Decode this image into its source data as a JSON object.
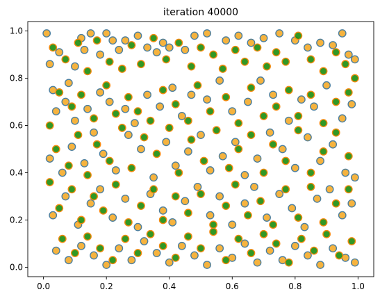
{
  "chart_data": {
    "type": "scatter",
    "title": "iteration 40000",
    "xlabel": "",
    "ylabel": "",
    "xlim": [
      -0.05,
      1.05
    ],
    "ylim": [
      -0.04,
      1.04
    ],
    "xticks": [
      "0.0",
      "0.2",
      "0.4",
      "0.6",
      "0.8",
      "1.0"
    ],
    "yticks": [
      "0.0",
      "0.2",
      "0.4",
      "0.6",
      "0.8",
      "1.0"
    ],
    "grid": false,
    "series": [
      {
        "marker_style": "orange-fill-steelblue-edge",
        "face_color": "#f5ac2e",
        "edge_color": "#4d7f9e",
        "points": [
          [
            0.01,
            0.99
          ],
          [
            0.02,
            0.86
          ],
          [
            0.03,
            0.75
          ],
          [
            0.05,
            0.91
          ],
          [
            0.08,
            0.78
          ],
          [
            0.1,
            0.85
          ],
          [
            0.12,
            0.97
          ],
          [
            0.13,
            0.92
          ],
          [
            0.15,
            0.99
          ],
          [
            0.18,
            0.9
          ],
          [
            0.2,
            0.99
          ],
          [
            0.22,
            0.96
          ],
          [
            0.24,
            0.92
          ],
          [
            0.26,
            0.96
          ],
          [
            0.3,
            0.98
          ],
          [
            0.33,
            0.93
          ],
          [
            0.36,
            0.91
          ],
          [
            0.38,
            0.95
          ],
          [
            0.4,
            0.93
          ],
          [
            0.45,
            0.92
          ],
          [
            0.48,
            0.98
          ],
          [
            0.52,
            0.99
          ],
          [
            0.58,
            0.96
          ],
          [
            0.62,
            0.98
          ],
          [
            0.66,
            0.95
          ],
          [
            0.7,
            0.97
          ],
          [
            0.75,
            0.99
          ],
          [
            0.8,
            0.96
          ],
          [
            0.84,
            0.93
          ],
          [
            0.88,
            0.95
          ],
          [
            0.92,
            0.94
          ],
          [
            0.95,
            0.99
          ],
          [
            0.97,
            0.9
          ],
          [
            0.99,
            0.88
          ],
          [
            0.04,
            0.66
          ],
          [
            0.07,
            0.7
          ],
          [
            0.1,
            0.62
          ],
          [
            0.14,
            0.67
          ],
          [
            0.18,
            0.74
          ],
          [
            0.21,
            0.7
          ],
          [
            0.26,
            0.67
          ],
          [
            0.29,
            0.61
          ],
          [
            0.33,
            0.73
          ],
          [
            0.37,
            0.68
          ],
          [
            0.41,
            0.76
          ],
          [
            0.44,
            0.64
          ],
          [
            0.47,
            0.73
          ],
          [
            0.52,
            0.71
          ],
          [
            0.56,
            0.79
          ],
          [
            0.6,
            0.66
          ],
          [
            0.65,
            0.7
          ],
          [
            0.69,
            0.79
          ],
          [
            0.73,
            0.73
          ],
          [
            0.78,
            0.62
          ],
          [
            0.82,
            0.71
          ],
          [
            0.86,
            0.68
          ],
          [
            0.9,
            0.77
          ],
          [
            0.95,
            0.63
          ],
          [
            0.98,
            0.69
          ],
          [
            0.02,
            0.46
          ],
          [
            0.06,
            0.4
          ],
          [
            0.09,
            0.51
          ],
          [
            0.13,
            0.44
          ],
          [
            0.16,
            0.57
          ],
          [
            0.19,
            0.48
          ],
          [
            0.23,
            0.41
          ],
          [
            0.27,
            0.56
          ],
          [
            0.31,
            0.5
          ],
          [
            0.35,
            0.38
          ],
          [
            0.39,
            0.53
          ],
          [
            0.42,
            0.43
          ],
          [
            0.46,
            0.49
          ],
          [
            0.5,
            0.56
          ],
          [
            0.53,
            0.41
          ],
          [
            0.57,
            0.47
          ],
          [
            0.61,
            0.53
          ],
          [
            0.64,
            0.39
          ],
          [
            0.68,
            0.46
          ],
          [
            0.72,
            0.57
          ],
          [
            0.76,
            0.5
          ],
          [
            0.8,
            0.42
          ],
          [
            0.84,
            0.55
          ],
          [
            0.88,
            0.45
          ],
          [
            0.92,
            0.52
          ],
          [
            0.96,
            0.4
          ],
          [
            0.99,
            0.38
          ],
          [
            0.03,
            0.22
          ],
          [
            0.07,
            0.3
          ],
          [
            0.11,
            0.18
          ],
          [
            0.15,
            0.27
          ],
          [
            0.18,
            0.33
          ],
          [
            0.22,
            0.21
          ],
          [
            0.26,
            0.29
          ],
          [
            0.3,
            0.17
          ],
          [
            0.34,
            0.31
          ],
          [
            0.38,
            0.24
          ],
          [
            0.41,
            0.19
          ],
          [
            0.45,
            0.28
          ],
          [
            0.49,
            0.34
          ],
          [
            0.53,
            0.22
          ],
          [
            0.56,
            0.3
          ],
          [
            0.6,
            0.18
          ],
          [
            0.64,
            0.27
          ],
          [
            0.67,
            0.34
          ],
          [
            0.71,
            0.21
          ],
          [
            0.75,
            0.31
          ],
          [
            0.79,
            0.25
          ],
          [
            0.83,
            0.17
          ],
          [
            0.87,
            0.29
          ],
          [
            0.91,
            0.33
          ],
          [
            0.95,
            0.22
          ],
          [
            0.98,
            0.27
          ],
          [
            0.04,
            0.07
          ],
          [
            0.08,
            0.03
          ],
          [
            0.12,
            0.09
          ],
          [
            0.16,
            0.05
          ],
          [
            0.2,
            0.01
          ],
          [
            0.24,
            0.08
          ],
          [
            0.28,
            0.03
          ],
          [
            0.32,
            0.11
          ],
          [
            0.36,
            0.06
          ],
          [
            0.4,
            0.02
          ],
          [
            0.44,
            0.09
          ],
          [
            0.48,
            0.05
          ],
          [
            0.52,
            0.01
          ],
          [
            0.56,
            0.08
          ],
          [
            0.6,
            0.04
          ],
          [
            0.64,
            0.1
          ],
          [
            0.68,
            0.02
          ],
          [
            0.72,
            0.07
          ],
          [
            0.76,
            0.03
          ],
          [
            0.8,
            0.09
          ],
          [
            0.84,
            0.05
          ],
          [
            0.88,
            0.01
          ],
          [
            0.92,
            0.08
          ],
          [
            0.96,
            0.04
          ],
          [
            0.99,
            0.02
          ]
        ]
      },
      {
        "marker_style": "green-fill-orange-edge",
        "face_color": "#1f8f12",
        "edge_color": "#f58a0f",
        "points": [
          [
            0.03,
            0.93
          ],
          [
            0.07,
            0.88
          ],
          [
            0.11,
            0.95
          ],
          [
            0.14,
            0.83
          ],
          [
            0.17,
            0.96
          ],
          [
            0.21,
            0.87
          ],
          [
            0.25,
            0.84
          ],
          [
            0.28,
            0.94
          ],
          [
            0.31,
            0.86
          ],
          [
            0.35,
            0.97
          ],
          [
            0.39,
            0.88
          ],
          [
            0.43,
            0.95
          ],
          [
            0.47,
            0.85
          ],
          [
            0.5,
            0.93
          ],
          [
            0.54,
            0.9
          ],
          [
            0.57,
            0.84
          ],
          [
            0.61,
            0.92
          ],
          [
            0.64,
            0.87
          ],
          [
            0.68,
            0.93
          ],
          [
            0.71,
            0.85
          ],
          [
            0.74,
            0.91
          ],
          [
            0.77,
            0.87
          ],
          [
            0.81,
            0.98
          ],
          [
            0.85,
            0.88
          ],
          [
            0.89,
            0.83
          ],
          [
            0.93,
            0.91
          ],
          [
            0.96,
            0.86
          ],
          [
            0.99,
            0.8
          ],
          [
            0.02,
            0.6
          ],
          [
            0.05,
            0.74
          ],
          [
            0.09,
            0.68
          ],
          [
            0.12,
            0.73
          ],
          [
            0.16,
            0.63
          ],
          [
            0.2,
            0.77
          ],
          [
            0.23,
            0.65
          ],
          [
            0.27,
            0.72
          ],
          [
            0.3,
            0.66
          ],
          [
            0.34,
            0.62
          ],
          [
            0.38,
            0.75
          ],
          [
            0.42,
            0.69
          ],
          [
            0.46,
            0.62
          ],
          [
            0.49,
            0.77
          ],
          [
            0.53,
            0.66
          ],
          [
            0.58,
            0.72
          ],
          [
            0.62,
            0.61
          ],
          [
            0.66,
            0.76
          ],
          [
            0.7,
            0.64
          ],
          [
            0.74,
            0.68
          ],
          [
            0.78,
            0.75
          ],
          [
            0.81,
            0.64
          ],
          [
            0.85,
            0.73
          ],
          [
            0.89,
            0.61
          ],
          [
            0.93,
            0.7
          ],
          [
            0.97,
            0.74
          ],
          [
            0.04,
            0.5
          ],
          [
            0.08,
            0.43
          ],
          [
            0.11,
            0.56
          ],
          [
            0.14,
            0.39
          ],
          [
            0.17,
            0.52
          ],
          [
            0.21,
            0.45
          ],
          [
            0.25,
            0.59
          ],
          [
            0.28,
            0.42
          ],
          [
            0.32,
            0.55
          ],
          [
            0.36,
            0.48
          ],
          [
            0.4,
            0.59
          ],
          [
            0.43,
            0.4
          ],
          [
            0.47,
            0.54
          ],
          [
            0.51,
            0.45
          ],
          [
            0.55,
            0.58
          ],
          [
            0.59,
            0.42
          ],
          [
            0.62,
            0.5
          ],
          [
            0.66,
            0.56
          ],
          [
            0.7,
            0.4
          ],
          [
            0.73,
            0.52
          ],
          [
            0.77,
            0.45
          ],
          [
            0.81,
            0.58
          ],
          [
            0.85,
            0.4
          ],
          [
            0.89,
            0.49
          ],
          [
            0.93,
            0.57
          ],
          [
            0.97,
            0.47
          ],
          [
            0.02,
            0.36
          ],
          [
            0.05,
            0.25
          ],
          [
            0.09,
            0.33
          ],
          [
            0.12,
            0.2
          ],
          [
            0.16,
            0.3
          ],
          [
            0.19,
            0.24
          ],
          [
            0.23,
            0.35
          ],
          [
            0.27,
            0.19
          ],
          [
            0.31,
            0.26
          ],
          [
            0.35,
            0.33
          ],
          [
            0.38,
            0.2
          ],
          [
            0.42,
            0.3
          ],
          [
            0.46,
            0.23
          ],
          [
            0.5,
            0.31
          ],
          [
            0.54,
            0.18
          ],
          [
            0.58,
            0.26
          ],
          [
            0.61,
            0.35
          ],
          [
            0.65,
            0.22
          ],
          [
            0.69,
            0.28
          ],
          [
            0.73,
            0.18
          ],
          [
            0.77,
            0.33
          ],
          [
            0.81,
            0.21
          ],
          [
            0.85,
            0.34
          ],
          [
            0.89,
            0.19
          ],
          [
            0.93,
            0.27
          ],
          [
            0.97,
            0.33
          ],
          [
            0.06,
            0.12
          ],
          [
            0.1,
            0.06
          ],
          [
            0.14,
            0.13
          ],
          [
            0.18,
            0.08
          ],
          [
            0.22,
            0.03
          ],
          [
            0.26,
            0.12
          ],
          [
            0.3,
            0.06
          ],
          [
            0.34,
            0.14
          ],
          [
            0.38,
            0.09
          ],
          [
            0.42,
            0.04
          ],
          [
            0.46,
            0.13
          ],
          [
            0.5,
            0.08
          ],
          [
            0.54,
            0.15
          ],
          [
            0.58,
            0.03
          ],
          [
            0.62,
            0.12
          ],
          [
            0.66,
            0.06
          ],
          [
            0.7,
            0.14
          ],
          [
            0.74,
            0.1
          ],
          [
            0.78,
            0.02
          ],
          [
            0.82,
            0.12
          ],
          [
            0.86,
            0.07
          ],
          [
            0.9,
            0.14
          ],
          [
            0.94,
            0.05
          ],
          [
            0.98,
            0.11
          ]
        ]
      }
    ]
  }
}
